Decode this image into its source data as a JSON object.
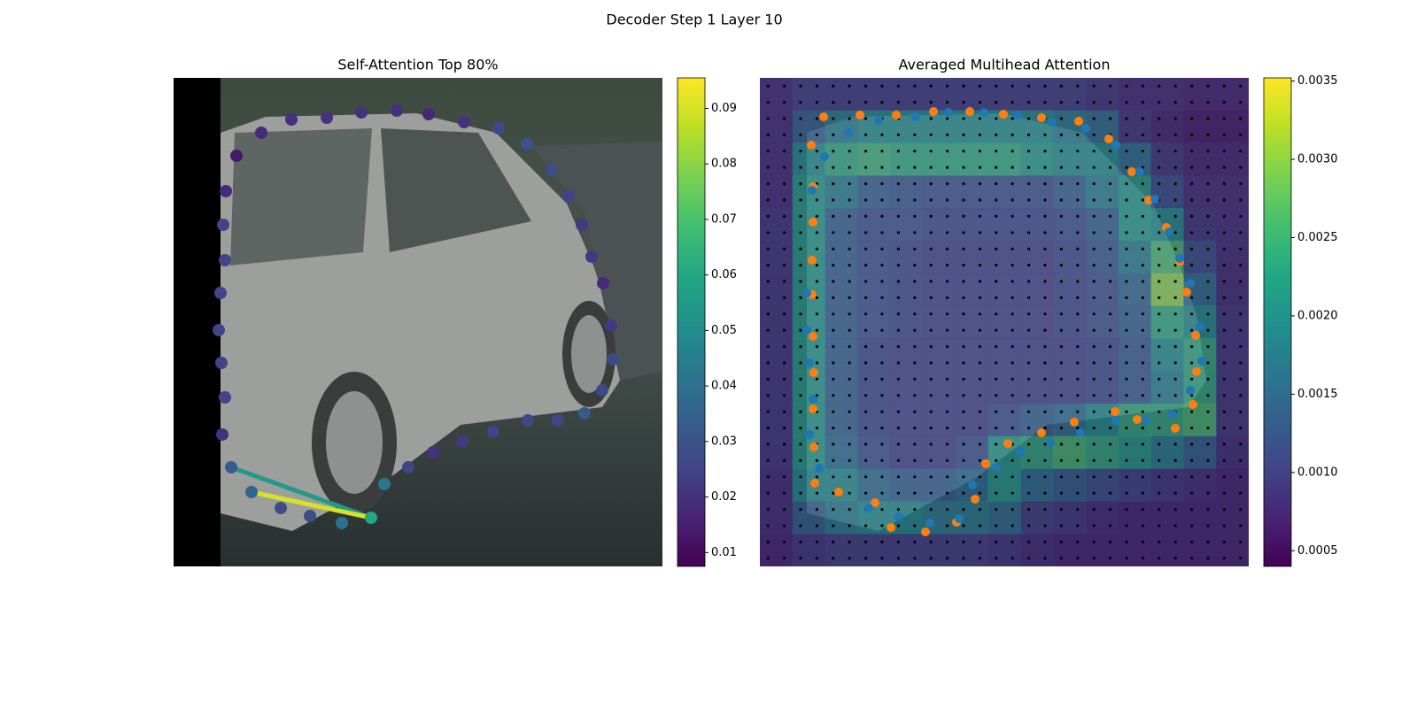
{
  "title": "Decoder Step 1 Layer 10",
  "chart_data": [
    {
      "type": "scatter",
      "title": "Self-Attention Top 80%",
      "colormap": "viridis",
      "xlim": [
        0,
        552
      ],
      "ylim": [
        552,
        0
      ],
      "x": [
        71,
        59,
        56,
        58,
        53,
        51,
        54,
        58,
        55,
        65,
        88,
        121,
        154,
        190,
        223,
        238,
        265,
        293,
        326,
        361,
        400,
        434,
        464,
        484,
        496,
        494,
        485,
        472,
        461,
        446,
        427,
        399,
        367,
        328,
        288,
        252,
        212,
        173,
        133,
        99
      ],
      "y": [
        88,
        128,
        166,
        206,
        243,
        285,
        322,
        361,
        403,
        440,
        468,
        486,
        495,
        503,
        497,
        459,
        440,
        423,
        411,
        400,
        387,
        387,
        379,
        353,
        318,
        280,
        232,
        202,
        166,
        134,
        104,
        75,
        57,
        50,
        41,
        37,
        39,
        45,
        47,
        62
      ],
      "values": [
        0.013,
        0.018,
        0.025,
        0.025,
        0.025,
        0.025,
        0.025,
        0.025,
        0.02,
        0.033,
        0.036,
        0.028,
        0.028,
        0.04,
        0.06,
        0.042,
        0.025,
        0.02,
        0.022,
        0.025,
        0.027,
        0.025,
        0.032,
        0.027,
        0.027,
        0.022,
        0.018,
        0.022,
        0.022,
        0.025,
        0.028,
        0.03,
        0.027,
        0.02,
        0.017,
        0.02,
        0.02,
        0.02,
        0.02,
        0.018
      ],
      "edges": [
        {
          "x": [
            223,
            65
          ],
          "y": [
            497,
            440
          ],
          "value": 0.055
        },
        {
          "x": [
            223,
            88
          ],
          "y": [
            497,
            468
          ],
          "value": 0.09
        }
      ],
      "clim": [
        0.0075,
        0.0955
      ],
      "colorbar_ticks": [
        0.01,
        0.02,
        0.03,
        0.04,
        0.05,
        0.06,
        0.07,
        0.08,
        0.09
      ]
    },
    {
      "type": "heatmap",
      "title": "Averaged Multihead Attention",
      "colormap": "viridis",
      "xlim": [
        0,
        552
      ],
      "ylim": [
        552,
        0
      ],
      "z": [
        [
          0.0008,
          0.001,
          0.001,
          0.001,
          0.001,
          0.001,
          0.001,
          0.001,
          0.001,
          0.001,
          0.0009,
          0.0008,
          0.0008,
          0.0007,
          0.0007
        ],
        [
          0.0008,
          0.0014,
          0.0018,
          0.002,
          0.002,
          0.002,
          0.002,
          0.002,
          0.002,
          0.0018,
          0.0016,
          0.0009,
          0.0007,
          0.0006,
          0.0006
        ],
        [
          0.0008,
          0.002,
          0.0024,
          0.0025,
          0.0024,
          0.0024,
          0.0024,
          0.0024,
          0.0022,
          0.002,
          0.002,
          0.0016,
          0.0009,
          0.0007,
          0.0007
        ],
        [
          0.0008,
          0.0022,
          0.0018,
          0.0014,
          0.0013,
          0.0012,
          0.0012,
          0.0012,
          0.0012,
          0.0014,
          0.0018,
          0.0022,
          0.0012,
          0.0008,
          0.0008
        ],
        [
          0.0009,
          0.0022,
          0.0014,
          0.0012,
          0.0012,
          0.0011,
          0.0011,
          0.0011,
          0.0011,
          0.0012,
          0.0014,
          0.0022,
          0.002,
          0.0009,
          0.0008
        ],
        [
          0.0009,
          0.0022,
          0.0014,
          0.0012,
          0.0011,
          0.001,
          0.001,
          0.001,
          0.001,
          0.0011,
          0.0013,
          0.0018,
          0.0026,
          0.0012,
          0.0008
        ],
        [
          0.0009,
          0.0022,
          0.0014,
          0.0012,
          0.0011,
          0.001,
          0.001,
          0.001,
          0.001,
          0.0011,
          0.0012,
          0.0015,
          0.003,
          0.0016,
          0.0008
        ],
        [
          0.0009,
          0.0022,
          0.0014,
          0.0012,
          0.0011,
          0.001,
          0.001,
          0.001,
          0.001,
          0.0011,
          0.0012,
          0.0014,
          0.0024,
          0.002,
          0.0009
        ],
        [
          0.0009,
          0.0022,
          0.0014,
          0.0011,
          0.001,
          0.001,
          0.001,
          0.001,
          0.001,
          0.001,
          0.0011,
          0.0013,
          0.002,
          0.0024,
          0.0009
        ],
        [
          0.0009,
          0.0022,
          0.0014,
          0.0011,
          0.001,
          0.001,
          0.001,
          0.001,
          0.001,
          0.001,
          0.0011,
          0.0013,
          0.0018,
          0.0024,
          0.0009
        ],
        [
          0.0009,
          0.0022,
          0.0014,
          0.0011,
          0.001,
          0.001,
          0.001,
          0.0012,
          0.0014,
          0.0016,
          0.002,
          0.0024,
          0.0024,
          0.0026,
          0.0009
        ],
        [
          0.0009,
          0.0022,
          0.0016,
          0.0012,
          0.001,
          0.001,
          0.0012,
          0.0022,
          0.0024,
          0.0026,
          0.0024,
          0.0022,
          0.0018,
          0.0014,
          0.0008
        ],
        [
          0.0008,
          0.002,
          0.002,
          0.0016,
          0.0014,
          0.0014,
          0.0016,
          0.0022,
          0.0016,
          0.0014,
          0.0012,
          0.001,
          0.0009,
          0.0008,
          0.0007
        ],
        [
          0.0008,
          0.0014,
          0.0018,
          0.002,
          0.002,
          0.0018,
          0.0018,
          0.0016,
          0.001,
          0.0009,
          0.0008,
          0.0007,
          0.0007,
          0.0007,
          0.0007
        ],
        [
          0.0007,
          0.0009,
          0.001,
          0.001,
          0.001,
          0.001,
          0.001,
          0.0009,
          0.0008,
          0.0007,
          0.0007,
          0.0007,
          0.0007,
          0.0007,
          0.0007
        ]
      ],
      "points": [
        {
          "color": "#ff7f0e",
          "x": [
            72,
            113,
            154,
            196,
            237,
            275,
            318,
            360,
            394,
            420,
            439,
            459,
            474,
            482,
            492,
            493,
            489,
            469,
            426,
            401,
            355,
            318,
            280,
            255,
            243,
            222,
            187,
            148,
            130,
            89,
            62,
            61,
            60,
            61,
            60,
            59,
            59,
            60,
            60,
            58
          ],
          "y": [
            44,
            42,
            42,
            38,
            38,
            41,
            45,
            49,
            69,
            106,
            138,
            169,
            208,
            242,
            291,
            332,
            369,
            396,
            386,
            377,
            389,
            401,
            413,
            436,
            476,
            502,
            513,
            508,
            480,
            468,
            458,
            417,
            374,
            333,
            292,
            245,
            206,
            163,
            123,
            76
          ]
        },
        {
          "color": "#1f77b4",
          "x": [
            100,
            134,
            176,
            213,
            253,
            291,
            330,
            368,
            402,
            429,
            446,
            462,
            474,
            486,
            497,
            499,
            486,
            466,
            436,
            402,
            362,
            328,
            294,
            267,
            240,
            225,
            192,
            157,
            123,
            67,
            56,
            60,
            56,
            53,
            53,
            59,
            73
          ],
          "y": [
            62,
            48,
            44,
            39,
            39,
            42,
            50,
            57,
            76,
            106,
            137,
            174,
            204,
            232,
            281,
            320,
            353,
            380,
            387,
            387,
            401,
            412,
            423,
            440,
            460,
            498,
            503,
            496,
            486,
            441,
            403,
            363,
            322,
            285,
            243,
            127,
            89
          ]
        }
      ],
      "clim": [
        0.0004,
        0.00352
      ],
      "colorbar_ticks": [
        0.0005,
        {
          "value": 0.001,
          "label": "0.0010"
        },
        0.0015,
        {
          "value": 0.002,
          "label": "0.0020"
        },
        0.0025,
        {
          "value": 0.003,
          "label": "0.0030"
        },
        0.0035
      ]
    }
  ]
}
